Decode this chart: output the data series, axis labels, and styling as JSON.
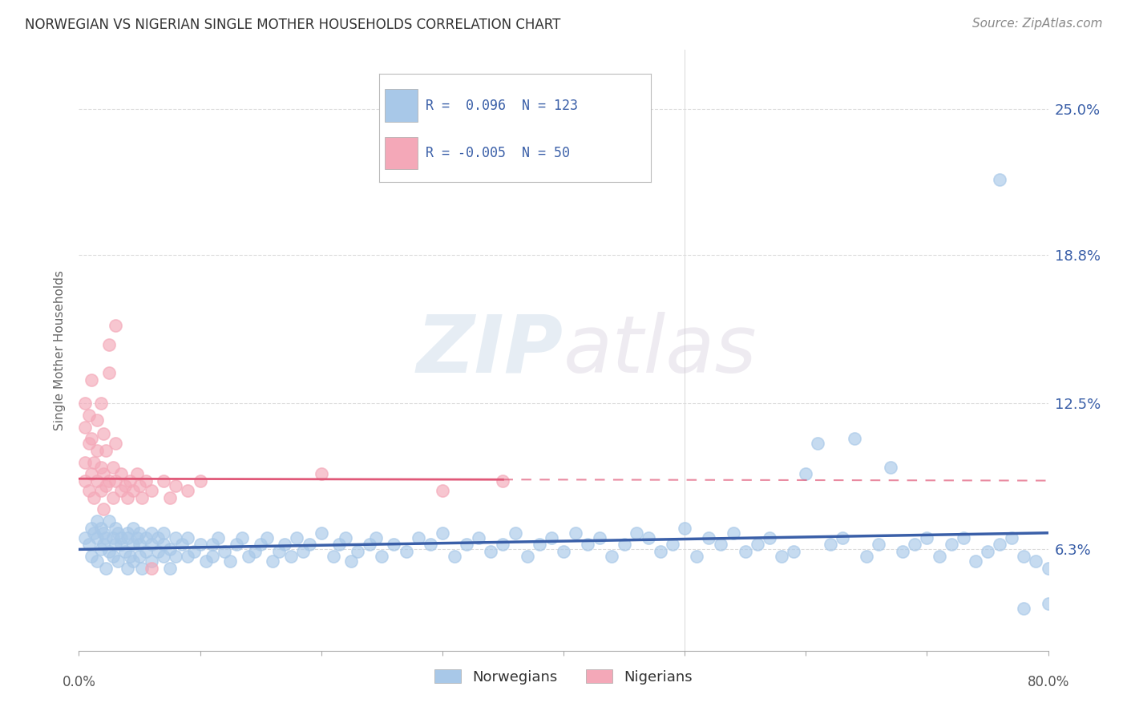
{
  "title": "NORWEGIAN VS NIGERIAN SINGLE MOTHER HOUSEHOLDS CORRELATION CHART",
  "source": "Source: ZipAtlas.com",
  "ylabel": "Single Mother Households",
  "yticks": [
    0.063,
    0.125,
    0.188,
    0.25
  ],
  "ytick_labels": [
    "6.3%",
    "12.5%",
    "18.8%",
    "25.0%"
  ],
  "xlim": [
    0.0,
    0.8
  ],
  "ylim": [
    0.02,
    0.275
  ],
  "bg_color": "#ffffff",
  "grid_color": "#cccccc",
  "norwegian_color": "#a8c8e8",
  "nigerian_color": "#f4a8b8",
  "norwegian_line_color": "#3a5fa8",
  "nigerian_line_color": "#e05878",
  "norwegian_r": 0.096,
  "nigerian_r": -0.005,
  "watermark_color": "#d0dce8",
  "scatter_norwegian": [
    [
      0.005,
      0.068
    ],
    [
      0.008,
      0.065
    ],
    [
      0.01,
      0.072
    ],
    [
      0.01,
      0.06
    ],
    [
      0.012,
      0.07
    ],
    [
      0.015,
      0.068
    ],
    [
      0.015,
      0.075
    ],
    [
      0.015,
      0.058
    ],
    [
      0.018,
      0.063
    ],
    [
      0.018,
      0.072
    ],
    [
      0.02,
      0.065
    ],
    [
      0.02,
      0.07
    ],
    [
      0.022,
      0.068
    ],
    [
      0.022,
      0.055
    ],
    [
      0.025,
      0.062
    ],
    [
      0.025,
      0.075
    ],
    [
      0.028,
      0.06
    ],
    [
      0.028,
      0.068
    ],
    [
      0.03,
      0.065
    ],
    [
      0.03,
      0.072
    ],
    [
      0.032,
      0.07
    ],
    [
      0.032,
      0.058
    ],
    [
      0.035,
      0.065
    ],
    [
      0.035,
      0.068
    ],
    [
      0.038,
      0.062
    ],
    [
      0.04,
      0.055
    ],
    [
      0.04,
      0.07
    ],
    [
      0.04,
      0.068
    ],
    [
      0.042,
      0.06
    ],
    [
      0.045,
      0.065
    ],
    [
      0.045,
      0.072
    ],
    [
      0.045,
      0.058
    ],
    [
      0.048,
      0.068
    ],
    [
      0.05,
      0.06
    ],
    [
      0.05,
      0.065
    ],
    [
      0.05,
      0.07
    ],
    [
      0.052,
      0.055
    ],
    [
      0.055,
      0.062
    ],
    [
      0.055,
      0.068
    ],
    [
      0.06,
      0.065
    ],
    [
      0.06,
      0.07
    ],
    [
      0.06,
      0.058
    ],
    [
      0.065,
      0.062
    ],
    [
      0.065,
      0.068
    ],
    [
      0.07,
      0.06
    ],
    [
      0.07,
      0.065
    ],
    [
      0.07,
      0.07
    ],
    [
      0.075,
      0.055
    ],
    [
      0.075,
      0.063
    ],
    [
      0.08,
      0.06
    ],
    [
      0.08,
      0.068
    ],
    [
      0.085,
      0.065
    ],
    [
      0.09,
      0.06
    ],
    [
      0.09,
      0.068
    ],
    [
      0.095,
      0.062
    ],
    [
      0.1,
      0.065
    ],
    [
      0.105,
      0.058
    ],
    [
      0.11,
      0.06
    ],
    [
      0.11,
      0.065
    ],
    [
      0.115,
      0.068
    ],
    [
      0.12,
      0.062
    ],
    [
      0.125,
      0.058
    ],
    [
      0.13,
      0.065
    ],
    [
      0.135,
      0.068
    ],
    [
      0.14,
      0.06
    ],
    [
      0.145,
      0.062
    ],
    [
      0.15,
      0.065
    ],
    [
      0.155,
      0.068
    ],
    [
      0.16,
      0.058
    ],
    [
      0.165,
      0.062
    ],
    [
      0.17,
      0.065
    ],
    [
      0.175,
      0.06
    ],
    [
      0.18,
      0.068
    ],
    [
      0.185,
      0.062
    ],
    [
      0.19,
      0.065
    ],
    [
      0.2,
      0.07
    ],
    [
      0.21,
      0.06
    ],
    [
      0.215,
      0.065
    ],
    [
      0.22,
      0.068
    ],
    [
      0.225,
      0.058
    ],
    [
      0.23,
      0.062
    ],
    [
      0.24,
      0.065
    ],
    [
      0.245,
      0.068
    ],
    [
      0.25,
      0.06
    ],
    [
      0.26,
      0.065
    ],
    [
      0.27,
      0.062
    ],
    [
      0.28,
      0.068
    ],
    [
      0.29,
      0.065
    ],
    [
      0.3,
      0.07
    ],
    [
      0.31,
      0.06
    ],
    [
      0.32,
      0.065
    ],
    [
      0.33,
      0.068
    ],
    [
      0.34,
      0.062
    ],
    [
      0.35,
      0.065
    ],
    [
      0.36,
      0.07
    ],
    [
      0.37,
      0.06
    ],
    [
      0.38,
      0.065
    ],
    [
      0.39,
      0.068
    ],
    [
      0.4,
      0.062
    ],
    [
      0.41,
      0.07
    ],
    [
      0.42,
      0.065
    ],
    [
      0.43,
      0.068
    ],
    [
      0.44,
      0.06
    ],
    [
      0.45,
      0.065
    ],
    [
      0.46,
      0.07
    ],
    [
      0.47,
      0.068
    ],
    [
      0.48,
      0.062
    ],
    [
      0.49,
      0.065
    ],
    [
      0.5,
      0.072
    ],
    [
      0.51,
      0.06
    ],
    [
      0.52,
      0.068
    ],
    [
      0.53,
      0.065
    ],
    [
      0.54,
      0.07
    ],
    [
      0.55,
      0.062
    ],
    [
      0.56,
      0.065
    ],
    [
      0.57,
      0.068
    ],
    [
      0.58,
      0.06
    ],
    [
      0.59,
      0.062
    ],
    [
      0.6,
      0.095
    ],
    [
      0.61,
      0.108
    ],
    [
      0.62,
      0.065
    ],
    [
      0.63,
      0.068
    ],
    [
      0.64,
      0.11
    ],
    [
      0.65,
      0.06
    ],
    [
      0.66,
      0.065
    ],
    [
      0.67,
      0.098
    ],
    [
      0.68,
      0.062
    ],
    [
      0.69,
      0.065
    ],
    [
      0.7,
      0.068
    ],
    [
      0.71,
      0.06
    ],
    [
      0.72,
      0.065
    ],
    [
      0.73,
      0.068
    ],
    [
      0.74,
      0.058
    ],
    [
      0.75,
      0.062
    ],
    [
      0.76,
      0.065
    ],
    [
      0.76,
      0.22
    ],
    [
      0.77,
      0.068
    ],
    [
      0.78,
      0.06
    ],
    [
      0.78,
      0.038
    ],
    [
      0.79,
      0.058
    ],
    [
      0.8,
      0.055
    ],
    [
      0.8,
      0.04
    ]
  ],
  "scatter_nigerian": [
    [
      0.005,
      0.092
    ],
    [
      0.005,
      0.1
    ],
    [
      0.005,
      0.115
    ],
    [
      0.005,
      0.125
    ],
    [
      0.008,
      0.088
    ],
    [
      0.008,
      0.108
    ],
    [
      0.008,
      0.12
    ],
    [
      0.01,
      0.095
    ],
    [
      0.01,
      0.11
    ],
    [
      0.01,
      0.135
    ],
    [
      0.012,
      0.1
    ],
    [
      0.012,
      0.085
    ],
    [
      0.015,
      0.092
    ],
    [
      0.015,
      0.105
    ],
    [
      0.015,
      0.118
    ],
    [
      0.018,
      0.088
    ],
    [
      0.018,
      0.098
    ],
    [
      0.018,
      0.125
    ],
    [
      0.02,
      0.095
    ],
    [
      0.02,
      0.112
    ],
    [
      0.02,
      0.08
    ],
    [
      0.022,
      0.09
    ],
    [
      0.022,
      0.105
    ],
    [
      0.025,
      0.092
    ],
    [
      0.025,
      0.138
    ],
    [
      0.025,
      0.15
    ],
    [
      0.028,
      0.085
    ],
    [
      0.028,
      0.098
    ],
    [
      0.03,
      0.092
    ],
    [
      0.03,
      0.108
    ],
    [
      0.03,
      0.158
    ],
    [
      0.035,
      0.088
    ],
    [
      0.035,
      0.095
    ],
    [
      0.038,
      0.09
    ],
    [
      0.04,
      0.085
    ],
    [
      0.042,
      0.092
    ],
    [
      0.045,
      0.088
    ],
    [
      0.048,
      0.095
    ],
    [
      0.05,
      0.09
    ],
    [
      0.052,
      0.085
    ],
    [
      0.055,
      0.092
    ],
    [
      0.06,
      0.055
    ],
    [
      0.06,
      0.088
    ],
    [
      0.07,
      0.092
    ],
    [
      0.075,
      0.085
    ],
    [
      0.08,
      0.09
    ],
    [
      0.09,
      0.088
    ],
    [
      0.1,
      0.092
    ],
    [
      0.2,
      0.095
    ],
    [
      0.3,
      0.088
    ],
    [
      0.35,
      0.092
    ]
  ],
  "nor_line_y0": 0.063,
  "nor_line_y1": 0.07,
  "nig_line_y": 0.093
}
